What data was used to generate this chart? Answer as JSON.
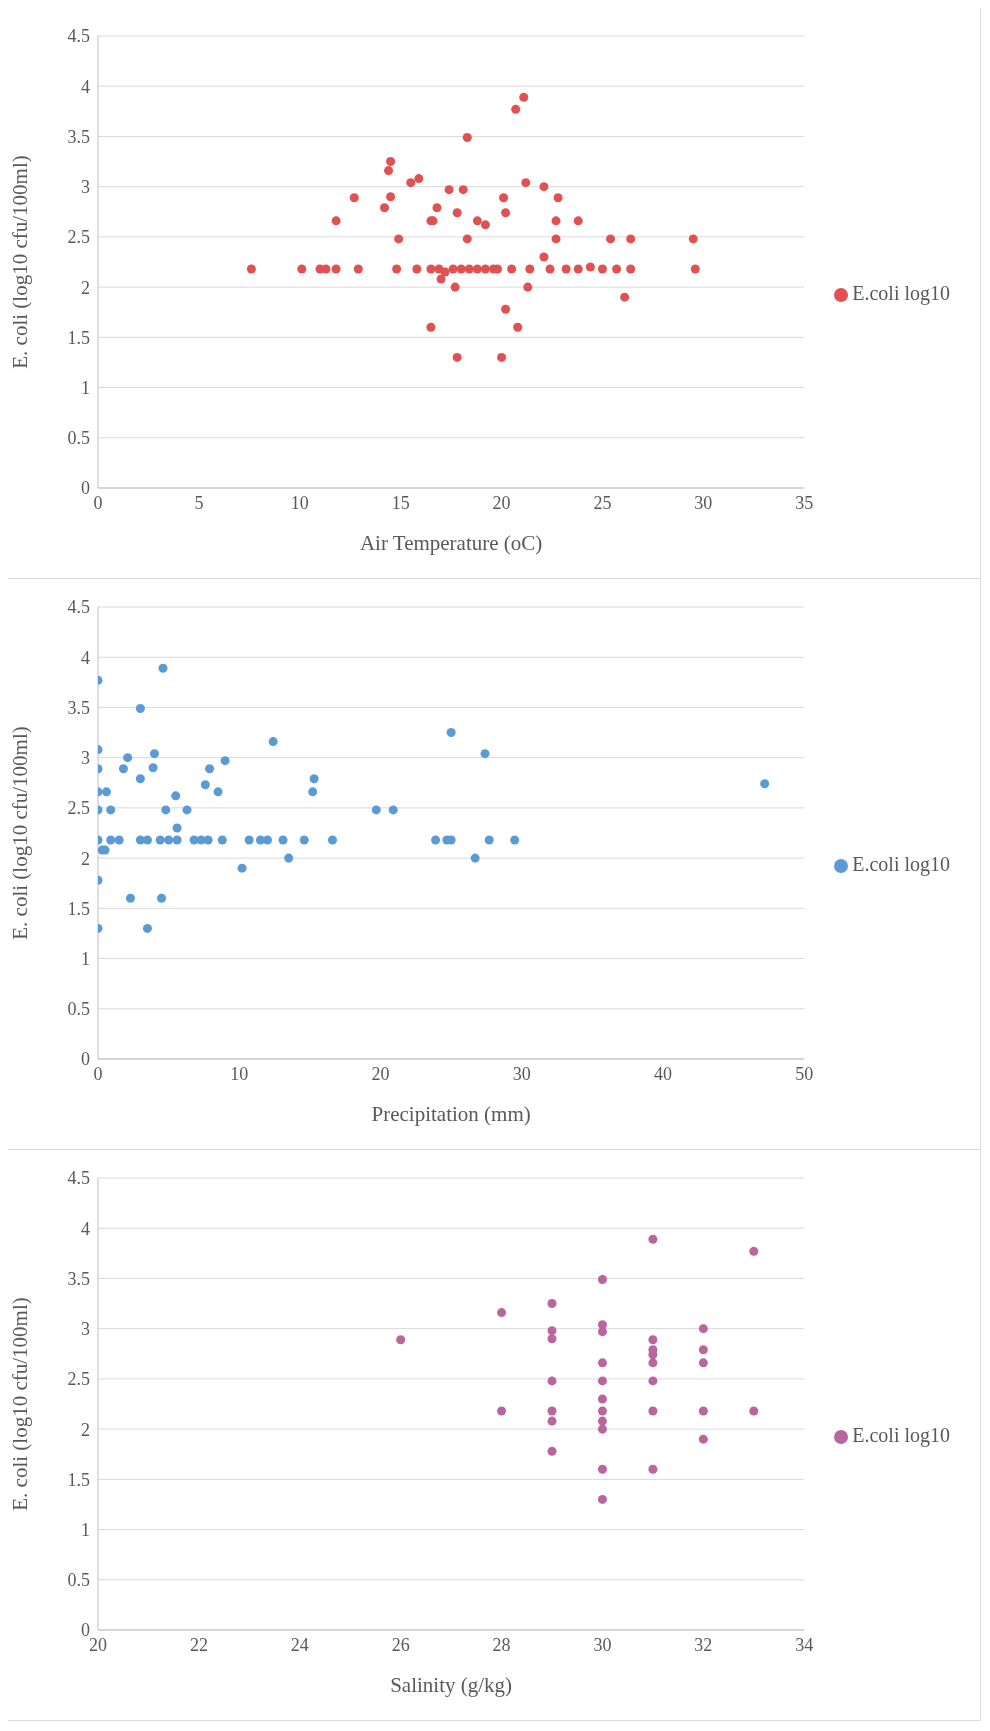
{
  "chart_data": [
    {
      "type": "scatter",
      "xlabel": "Air Temperature (oC)",
      "ylabel": "E. coli (log10 cfu/100ml)",
      "xlim": [
        0,
        35
      ],
      "xticks": [
        0,
        5,
        10,
        15,
        20,
        25,
        30,
        35
      ],
      "ylim": [
        0,
        4.5
      ],
      "yticks": [
        0,
        0.5,
        1,
        1.5,
        2,
        2.5,
        3,
        3.5,
        4,
        4.5
      ],
      "grid": "y",
      "legend": "right",
      "marker": "circle",
      "series": [
        {
          "name": "E.coli log10",
          "color": "#e05252",
          "x": [
            7.6,
            10.1,
            11,
            11.3,
            11.8,
            12.9,
            14.8,
            15.8,
            16.5,
            16.9,
            17.6,
            18,
            18.4,
            18.8,
            19.2,
            19.6,
            19.8,
            20.5,
            21.4,
            22.4,
            23.2,
            23.8,
            24.4,
            25,
            25.7,
            26.4,
            29.6,
            11.8,
            12.7,
            14.2,
            14.5,
            14.4,
            14.5,
            14.9,
            15.5,
            15.9,
            16.5,
            16.6,
            16.8,
            17,
            17.2,
            17.4,
            18.1,
            17.8,
            17.7,
            17.8,
            16.5,
            18.3,
            18.3,
            18.8,
            19.2,
            20,
            20.1,
            20.2,
            20.2,
            20.8,
            20.7,
            21.1,
            21.2,
            21.3,
            22.1,
            22.1,
            22.8,
            22.7,
            22.7,
            23.8,
            25.4,
            26.4,
            26.1,
            29.5
          ],
          "values": [
            2.18,
            2.18,
            2.18,
            2.18,
            2.18,
            2.18,
            2.18,
            2.18,
            2.18,
            2.18,
            2.18,
            2.18,
            2.18,
            2.18,
            2.18,
            2.18,
            2.18,
            2.18,
            2.18,
            2.18,
            2.18,
            2.18,
            2.2,
            2.18,
            2.18,
            2.18,
            2.18,
            2.66,
            2.89,
            2.79,
            2.9,
            3.16,
            3.25,
            2.48,
            3.04,
            3.08,
            2.66,
            2.66,
            2.79,
            2.08,
            2.15,
            2.97,
            2.97,
            2.74,
            2,
            1.3,
            1.6,
            3.49,
            2.48,
            2.66,
            2.62,
            1.3,
            2.89,
            2.74,
            1.78,
            1.6,
            3.77,
            3.89,
            3.04,
            2,
            3,
            2.3,
            2.89,
            2.66,
            2.48,
            2.66,
            2.48,
            2.48,
            1.9,
            2.48
          ]
        }
      ]
    },
    {
      "type": "scatter",
      "xlabel": "Precipitation (mm)",
      "ylabel": "E. coli (log10 cfu/100ml)",
      "xlim": [
        0,
        50
      ],
      "xticks": [
        0,
        10,
        20,
        30,
        40,
        50
      ],
      "ylim": [
        0,
        4.5
      ],
      "yticks": [
        0,
        0.5,
        1,
        1.5,
        2,
        2.5,
        3,
        3.5,
        4,
        4.5
      ],
      "grid": "y",
      "legend": "right",
      "marker": "circle",
      "series": [
        {
          "name": "E.coli log10",
          "color": "#5b9bd5",
          "x": [
            0,
            0,
            0,
            0,
            0.6,
            0,
            0.9,
            0,
            0.3,
            0.5,
            0,
            0,
            0.9,
            1.5,
            1.8,
            2.1,
            2.3,
            3,
            3,
            3,
            3.5,
            4.4,
            5,
            5.6,
            3.5,
            4,
            3.9,
            4.6,
            4.5,
            4.8,
            5.5,
            5.6,
            6.3,
            6.8,
            7.3,
            7.8,
            7.6,
            7.9,
            8.5,
            8.8,
            9,
            10.2,
            10.7,
            11.5,
            12,
            12.4,
            13.1,
            13.5,
            14.6,
            15.2,
            15.3,
            16.6,
            19.7,
            20.9,
            23.9,
            24.7,
            25,
            25,
            26.7,
            27.4,
            27.7,
            29.5,
            47.2
          ],
          "values": [
            3.77,
            3.08,
            2.89,
            2.66,
            2.66,
            2.48,
            2.48,
            2.18,
            2.08,
            2.08,
            1.78,
            1.3,
            2.18,
            2.18,
            2.89,
            3,
            1.6,
            3.49,
            2.79,
            2.18,
            2.18,
            2.18,
            2.18,
            2.18,
            1.3,
            3.04,
            2.9,
            3.89,
            1.6,
            2.48,
            2.62,
            2.3,
            2.48,
            2.18,
            2.18,
            2.18,
            2.73,
            2.89,
            2.66,
            2.18,
            2.97,
            1.9,
            2.18,
            2.18,
            2.18,
            3.16,
            2.18,
            2,
            2.18,
            2.66,
            2.79,
            2.18,
            2.48,
            2.48,
            2.18,
            2.18,
            2.18,
            3.25,
            2,
            3.04,
            2.18,
            2.18,
            2.74
          ]
        }
      ]
    },
    {
      "type": "scatter",
      "xlabel": "Salinity (g/kg)",
      "ylabel": "E. coli (log10 cfu/100ml)",
      "xlim": [
        20,
        34
      ],
      "xticks": [
        20,
        22,
        24,
        26,
        28,
        30,
        32,
        34
      ],
      "ylim": [
        0,
        4.5
      ],
      "yticks": [
        0,
        0.5,
        1,
        1.5,
        2,
        2.5,
        3,
        3.5,
        4,
        4.5
      ],
      "grid": "y",
      "legend": "right",
      "marker": "circle",
      "series": [
        {
          "name": "E.coli log10",
          "color": "#b9669e",
          "x": [
            26,
            28,
            28,
            29,
            29,
            29,
            29,
            29,
            29,
            29,
            30,
            30,
            30,
            30,
            30,
            30,
            30,
            30,
            30,
            30,
            30,
            31,
            31,
            31,
            31,
            31,
            31,
            31,
            31,
            32,
            32,
            32,
            32,
            32,
            33,
            33
          ],
          "values": [
            2.89,
            3.16,
            2.18,
            3.25,
            2.98,
            2.9,
            2.48,
            2.18,
            2.08,
            1.78,
            3.49,
            3.04,
            2.97,
            2.66,
            2.48,
            2.3,
            2.18,
            2.08,
            2,
            1.6,
            1.3,
            3.89,
            2.89,
            2.79,
            2.74,
            2.66,
            2.48,
            2.18,
            1.6,
            3,
            2.79,
            2.66,
            2.18,
            1.9,
            3.77,
            2.18
          ]
        }
      ]
    }
  ]
}
